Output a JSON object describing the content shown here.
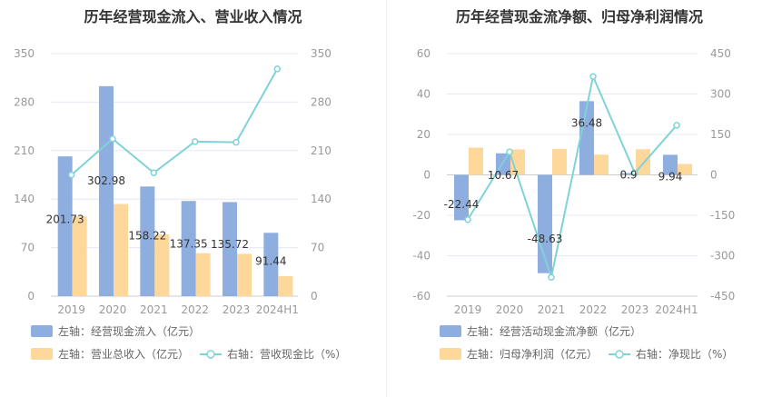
{
  "charts": [
    {
      "title": "历年经营现金流入、营业收入情况",
      "legend": [
        {
          "label": "左轴：经营现金流入（亿元）",
          "kind": "bar",
          "color": "#8eaee0"
        },
        {
          "label": "左轴：营业总收入（亿元）",
          "kind": "bar",
          "color": "#fdd89a"
        },
        {
          "label": "右轴：营收现金比（%）",
          "kind": "line",
          "color": "#7fd3d8"
        }
      ]
    },
    {
      "title": "历年经营现金流净额、归母净利润情况",
      "legend": [
        {
          "label": "左轴：经营活动现金流净额（亿元）",
          "kind": "bar",
          "color": "#8eaee0"
        },
        {
          "label": "左轴：归母净利润（亿元）",
          "kind": "bar",
          "color": "#fdd89a"
        },
        {
          "label": "右轴：净现比（%）",
          "kind": "line",
          "color": "#7fd3d8"
        }
      ]
    }
  ],
  "chart_data": [
    {
      "type": "bar",
      "title": "历年经营现金流入、营业收入情况",
      "categories": [
        "2019",
        "2020",
        "2021",
        "2022",
        "2023",
        "2024H1"
      ],
      "left_axis": {
        "min": 0,
        "max": 350,
        "ticks": [
          0,
          70,
          140,
          210,
          280,
          350
        ]
      },
      "right_axis": {
        "min": 0,
        "max": 350,
        "ticks": [
          0,
          70,
          140,
          210,
          280,
          350
        ]
      },
      "grid": true,
      "legend_position": "bottom",
      "series": [
        {
          "name": "左轴：经营现金流入（亿元）",
          "axis": "left",
          "type": "bar",
          "color": "#8eaee0",
          "values": [
            201.73,
            302.98,
            158.22,
            137.35,
            135.72,
            91.44
          ],
          "labels_shown": true
        },
        {
          "name": "左轴：营业总收入（亿元）",
          "axis": "left",
          "type": "bar",
          "color": "#fdd89a",
          "values": [
            115,
            133,
            89,
            62,
            61,
            29
          ],
          "labels_shown": false
        },
        {
          "name": "右轴：营收现金比（%）",
          "axis": "right",
          "type": "line",
          "color": "#7fd3d8",
          "values": [
            175,
            227,
            178,
            223,
            222,
            328
          ],
          "labels_shown": false
        }
      ]
    },
    {
      "type": "bar",
      "title": "历年经营现金流净额、归母净利润情况",
      "categories": [
        "2019",
        "2020",
        "2021",
        "2022",
        "2023",
        "2024H1"
      ],
      "left_axis": {
        "min": -60,
        "max": 60,
        "ticks": [
          -60,
          -40,
          -20,
          0,
          20,
          40,
          60
        ]
      },
      "right_axis": {
        "min": -450,
        "max": 450,
        "ticks": [
          -450,
          -300,
          -150,
          0,
          150,
          300,
          450
        ]
      },
      "grid": true,
      "legend_position": "bottom",
      "series": [
        {
          "name": "左轴：经营活动现金流净额（亿元）",
          "axis": "left",
          "type": "bar",
          "color": "#8eaee0",
          "values": [
            -22.44,
            10.67,
            -48.63,
            36.48,
            0.9,
            9.94
          ],
          "labels_shown": true
        },
        {
          "name": "左轴：归母净利润（亿元）",
          "axis": "left",
          "type": "bar",
          "color": "#fdd89a",
          "values": [
            13.5,
            12.6,
            12.8,
            10.0,
            12.7,
            5.4
          ],
          "labels_shown": false
        },
        {
          "name": "右轴：净现比（%）",
          "axis": "right",
          "type": "line",
          "color": "#7fd3d8",
          "values": [
            -166,
            85,
            -380,
            365,
            7,
            184
          ],
          "labels_shown": false
        }
      ]
    }
  ]
}
